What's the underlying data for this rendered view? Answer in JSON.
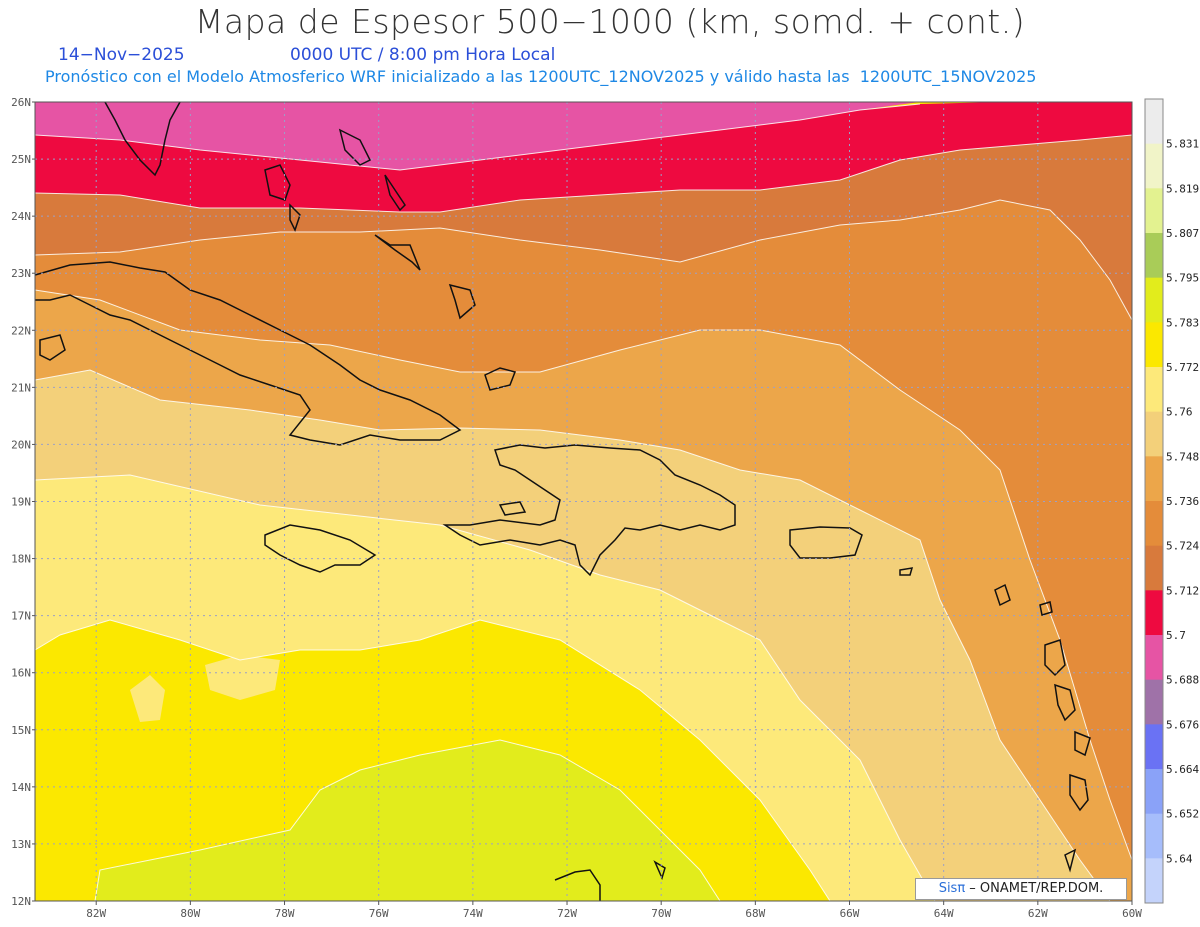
{
  "title": "Mapa de Espesor 500−1000 (km, somd. + cont.)",
  "date": "14−Nov−2025",
  "time": "0000 UTC / 8:00 pm Hora Local",
  "forecast": "Pronóstico con el Modelo Atmosferico WRF inicializado a las 1200UTC_12NOV2025 y válido hasta las  1200UTC_15NOV2025",
  "credit": {
    "brand": "Sisπ",
    "text": " – ONAMET/REP.DOM."
  },
  "lat_labels": [
    "26N",
    "25N",
    "24N",
    "23N",
    "22N",
    "21N",
    "20N",
    "19N",
    "18N",
    "17N",
    "16N",
    "15N",
    "14N",
    "13N",
    "12N"
  ],
  "lon_labels": [
    "82W",
    "80W",
    "78W",
    "76W",
    "74W",
    "72W",
    "70W",
    "68W",
    "66W",
    "64W",
    "62W",
    "60W"
  ],
  "colorbar": [
    {
      "label": "5.831",
      "color": "#ececec"
    },
    {
      "label": "5.819",
      "color": "#f1f4c8"
    },
    {
      "label": "5.807",
      "color": "#e3f290"
    },
    {
      "label": "5.795",
      "color": "#a9cc58"
    },
    {
      "label": "5.783",
      "color": "#e2ec1c"
    },
    {
      "label": "5.772",
      "color": "#fbe800"
    },
    {
      "label": "5.76",
      "color": "#fde97a"
    },
    {
      "label": "5.748",
      "color": "#f3d07a"
    },
    {
      "label": "5.736",
      "color": "#eca64a"
    },
    {
      "label": "5.724",
      "color": "#e48c3a"
    },
    {
      "label": "5.712",
      "color": "#d87a3c"
    },
    {
      "label": "5.7",
      "color": "#ee0a40"
    },
    {
      "label": "5.688",
      "color": "#e654a4"
    },
    {
      "label": "5.676",
      "color": "#9f72a8"
    },
    {
      "label": "5.664",
      "color": "#6a72f4"
    },
    {
      "label": "5.652",
      "color": "#8aa2f8"
    },
    {
      "label": "5.64",
      "color": "#a6bdfb"
    },
    {
      "label": "",
      "color": "#c4d3fb"
    }
  ]
}
